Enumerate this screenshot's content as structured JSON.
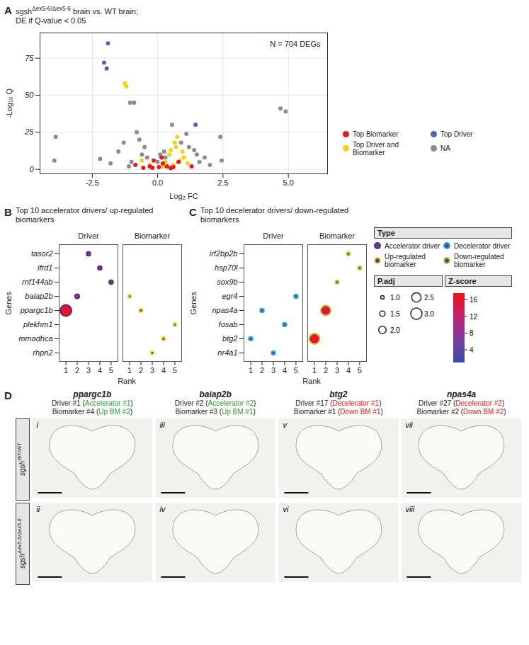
{
  "chart_data": [
    {
      "panel_label": "A",
      "type": "scatter",
      "title": [
        {
          "text": "sgsh"
        },
        {
          "text": "Δex5-6/Δex5-6",
          "sup": true
        },
        {
          "text": " brain vs. WT brain;"
        }
      ],
      "subtitle": "DE if Q-value < 0.05",
      "annotation": "N = 704 DEGs",
      "x_label": "Log₂ FC",
      "y_label": "-Log₁₀ Q",
      "xlim": [
        -4.5,
        6.5
      ],
      "xticks": [
        {
          "value": -2.5,
          "label": "-2.5"
        },
        {
          "value": 0,
          "label": "0.0"
        },
        {
          "value": 2.5,
          "label": "2.5"
        },
        {
          "value": 5,
          "label": "5.0"
        }
      ],
      "ylim": [
        -3,
        92
      ],
      "yticks": [
        0,
        25,
        50,
        75
      ],
      "grid": true,
      "legend": "right",
      "series": [
        {
          "name": "Top Biomarker",
          "color": "#e31a1c",
          "x": [
            -0.85,
            -0.55,
            -0.3,
            -0.15,
            0.05,
            0.2,
            0.35,
            0.6,
            0.8,
            1.3,
            -0.2,
            0.5,
            0.15
          ],
          "y": [
            3,
            1,
            2,
            6,
            1.5,
            4,
            2,
            1.5,
            5,
            2,
            1,
            0.8,
            8
          ]
        },
        {
          "name": "Top Driver",
          "color": "#4a66ad",
          "x": [
            -1.9,
            -2.05,
            -1.95,
            1.45
          ],
          "y": [
            85,
            72,
            68,
            30
          ]
        },
        {
          "name": "Top Driver and Biomarker",
          "color": "#f2d21b",
          "x": [
            -1.25,
            -1.2,
            0.75,
            0.7,
            0.45,
            0.95,
            1.0,
            0.3,
            0.6,
            -0.3,
            0.85,
            0.5,
            0.2,
            -0.6,
            1.15,
            0.65
          ],
          "y": [
            58,
            56,
            22,
            15,
            10,
            12,
            8,
            5,
            3,
            3,
            6,
            13,
            2,
            6,
            4,
            18
          ]
        },
        {
          "name": "NA",
          "color": "#8c8c8c",
          "x": [
            -1.05,
            -0.9,
            4.7,
            4.9,
            -3.9,
            -3.95,
            2.4,
            2.45,
            -1.3,
            -0.8,
            -0.7,
            1.1,
            0.9,
            -1.5,
            -0.6,
            1.5,
            0.3,
            -0.4,
            0.0,
            1.2,
            1.6,
            -1.8,
            -1.0,
            0.55,
            1.4,
            -0.2,
            2.0,
            0.5,
            -1.1,
            1.8,
            -0.5,
            0.25,
            -2.2,
            0.1
          ],
          "y": [
            45,
            45,
            41,
            39,
            22,
            6,
            22,
            6,
            18,
            25,
            20,
            24,
            18,
            12,
            10,
            10,
            8,
            8,
            5,
            15,
            5,
            4,
            5,
            30,
            13,
            1,
            3,
            1,
            2,
            8,
            15,
            12,
            7,
            10
          ]
        }
      ]
    },
    {
      "panel_label": "B",
      "type": "dot",
      "title": "Top 10 accelerator drivers/ up-regulated biomarkers",
      "x_label": "Rank",
      "y_label": "Genes",
      "xlim": [
        0.4,
        5.6
      ],
      "xticks": [
        1,
        2,
        3,
        4,
        5
      ],
      "categories": [
        "tasor2",
        "ifrd1",
        "rnf144ab",
        "baiap2b",
        "ppargc1b",
        "plekhm1",
        "mmadhca",
        "rhpn2"
      ],
      "facets": [
        {
          "name": "Driver",
          "type": "Accelerator driver",
          "color": "#5e2a6e",
          "rank": [
            1,
            2,
            3,
            4,
            5
          ],
          "genes": [
            "ppargc1b",
            "baiap2b",
            "tasor2",
            "ifrd1",
            "rnf144ab"
          ],
          "p_adj": [
            3.0,
            1.2,
            1.1,
            1.1,
            1.1
          ],
          "z_score": [
            16,
            6,
            5,
            5,
            5
          ]
        },
        {
          "name": "Biomarker",
          "type": "Up-regulated biomarker",
          "color": "#f2e03a",
          "rank": [
            1,
            2,
            3,
            4,
            5
          ],
          "genes": [
            "baiap2b",
            "ppargc1b",
            "rhpn2",
            "mmadhca",
            "plekhm1"
          ],
          "p_adj": [
            1.0,
            1.1,
            1.0,
            1.1,
            1.0
          ],
          "z_score": [
            3,
            4,
            3,
            4,
            3
          ]
        }
      ]
    },
    {
      "panel_label": "C",
      "type": "dot",
      "title": "Top 10 decelerator drivers/ down-regulated biomarkers",
      "x_label": "Rank",
      "y_label": "Genes",
      "xlim": [
        0.4,
        5.6
      ],
      "xticks": [
        1,
        2,
        3,
        4,
        5
      ],
      "categories": [
        "irf2bp2b",
        "hsp70l",
        "sox9b",
        "egr4",
        "npas4a",
        "fosab",
        "btg2",
        "nr4a1"
      ],
      "facets": [
        {
          "name": "Driver",
          "type": "Decelerator driver",
          "color": "#36a6d6",
          "rank": [
            1,
            2,
            3,
            4,
            5
          ],
          "genes": [
            "btg2",
            "npas4a",
            "nr4a1",
            "fosab",
            "egr4"
          ],
          "p_adj": [
            1.1,
            1.1,
            1.1,
            1.1,
            1.1
          ],
          "z_score": [
            3,
            3,
            3,
            3,
            3
          ]
        },
        {
          "name": "Biomarker",
          "type": "Down-regulated biomarker",
          "color": "#c9c83a",
          "rank": [
            1,
            2,
            3,
            4,
            5
          ],
          "genes": [
            "btg2",
            "npas4a",
            "sox9b",
            "irf2bp2b",
            "hsp70l"
          ],
          "p_adj": [
            2.8,
            2.7,
            1.0,
            1.0,
            1.0
          ],
          "z_score": [
            16,
            15,
            3,
            3,
            3
          ]
        }
      ]
    }
  ],
  "legend_BC": {
    "type_title": "Type",
    "types": [
      {
        "name": "Accelerator driver",
        "color": "#5e2a6e"
      },
      {
        "name": "Decelerator driver",
        "color": "#36a6d6"
      },
      {
        "name": "Up-regulated biomarker",
        "color": "#f2e03a"
      },
      {
        "name": "Down-regulated biomarker",
        "color": "#c9c83a"
      }
    ],
    "p_adj_title": "P.adj",
    "p_adj_lim": [
      1,
      3
    ],
    "p_adj_ticks": [
      {
        "value": 1,
        "label": "1.0"
      },
      {
        "value": 1.5,
        "label": "1.5"
      },
      {
        "value": 2,
        "label": "2.0"
      },
      {
        "value": 2.5,
        "label": "2.5"
      },
      {
        "value": 3,
        "label": "3.0"
      }
    ],
    "z_title": "Z-score",
    "zlim": [
      1,
      17.5
    ],
    "zticks": [
      4,
      8,
      12,
      16
    ],
    "colorscale": [
      "#3b4ba8",
      "#7b3fa0",
      "#c81e78",
      "#ee1111"
    ]
  },
  "panel_D": {
    "panel_label": "D",
    "row_labels": [
      [
        {
          "text": "sgsh"
        },
        {
          "text": "WT/WT",
          "sup": true
        }
      ],
      [
        {
          "text": "sgsh"
        },
        {
          "text": "Δex5-6/Δex5-6",
          "sup": true
        }
      ]
    ],
    "columns": [
      {
        "gene": "ppargc1b",
        "lines": [
          [
            {
              "text": "Driver #1 ("
            },
            {
              "text": "Accelerator #1",
              "color": "#2a9d2a"
            },
            {
              "text": ")"
            }
          ],
          [
            {
              "text": "Biomarker #4 ("
            },
            {
              "text": "Up BM #2",
              "color": "#2a9d2a"
            },
            {
              "text": ")"
            }
          ]
        ],
        "images": [
          "i",
          "ii"
        ]
      },
      {
        "gene": "baiap2b",
        "lines": [
          [
            {
              "text": "Driver #2 ("
            },
            {
              "text": "Accelerator #2",
              "color": "#2a9d2a"
            },
            {
              "text": ")"
            }
          ],
          [
            {
              "text": "Biomarker #3 ("
            },
            {
              "text": "Up BM #1",
              "color": "#2a9d2a"
            },
            {
              "text": ")"
            }
          ]
        ],
        "images": [
          "iii",
          "iv"
        ]
      },
      {
        "gene": "btg2",
        "lines": [
          [
            {
              "text": "Driver #17 ("
            },
            {
              "text": "Decelerator #1",
              "color": "#e0201b"
            },
            {
              "text": ")"
            }
          ],
          [
            {
              "text": "Biomarker #1 ("
            },
            {
              "text": "Down BM #1",
              "color": "#e0201b"
            },
            {
              "text": ")"
            }
          ]
        ],
        "images": [
          "v",
          "vi"
        ]
      },
      {
        "gene": "npas4a",
        "lines": [
          [
            {
              "text": "Driver #27 ("
            },
            {
              "text": "Decelerator #2",
              "color": "#e0201b"
            },
            {
              "text": ")"
            }
          ],
          [
            {
              "text": "Biomarker #2 ("
            },
            {
              "text": "Down BM #2",
              "color": "#e0201b"
            },
            {
              "text": ")"
            }
          ]
        ],
        "images": [
          "vii",
          "viii"
        ]
      }
    ]
  }
}
